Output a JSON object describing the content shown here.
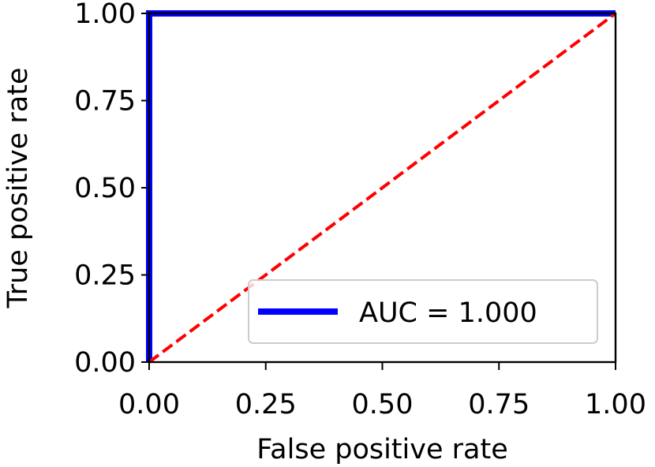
{
  "chart_data": {
    "type": "line",
    "xlabel": "False positive rate",
    "ylabel": "True positive rate",
    "xlim": [
      0,
      1
    ],
    "ylim": [
      0,
      1
    ],
    "x_ticks": [
      "0.00",
      "0.25",
      "0.50",
      "0.75",
      "1.00"
    ],
    "y_ticks": [
      "0.00",
      "0.25",
      "0.50",
      "0.75",
      "1.00"
    ],
    "grid": false,
    "legend_position": "lower right",
    "series": [
      {
        "name": "AUC = 1.000",
        "color": "#0000ff",
        "style": "solid",
        "x": [
          0.0,
          0.0,
          1.0
        ],
        "y": [
          0.0,
          1.0,
          1.0
        ]
      },
      {
        "color": "#ff0000",
        "style": "dashed",
        "x": [
          0.0,
          1.0
        ],
        "y": [
          0.0,
          1.0
        ]
      }
    ]
  }
}
